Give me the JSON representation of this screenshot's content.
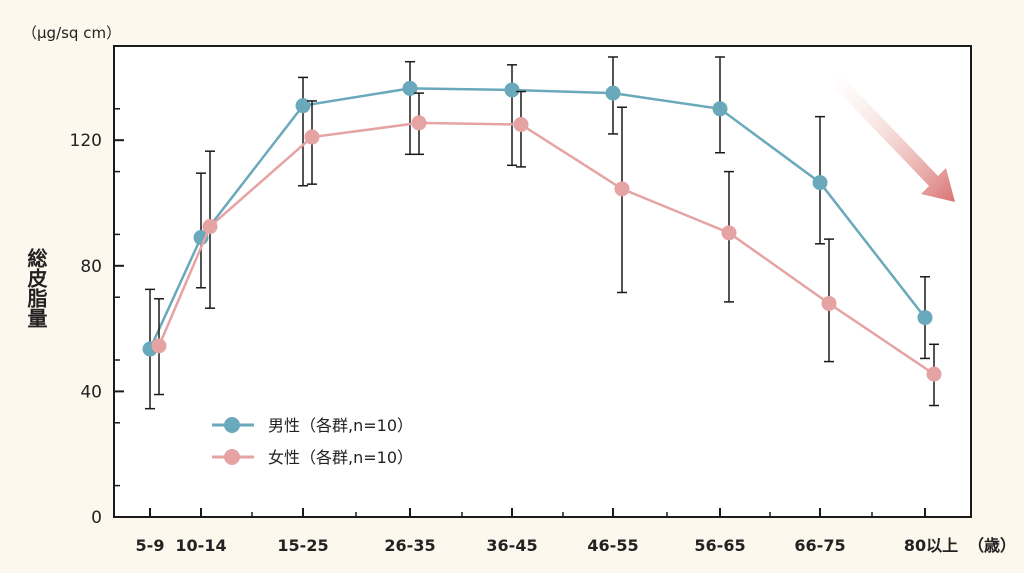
{
  "chart_data": {
    "type": "line",
    "title": "",
    "unit_label": "（μg/sq cm）",
    "ylabel": "総皮脂量",
    "xlabel_suffix": "（歳）",
    "categories": [
      "5-9",
      "10-14",
      "15-25",
      "26-35",
      "36-45",
      "46-55",
      "56-65",
      "66-75",
      "80以上"
    ],
    "ylim": [
      0,
      150
    ],
    "yticks": [
      0,
      40,
      80,
      120
    ],
    "grid": false,
    "legend_position": "lower-left",
    "series": [
      {
        "name": "男性（各群,n=10）",
        "color": "#6aa9bb",
        "values": [
          53.5,
          89,
          131,
          136.5,
          136,
          135,
          130,
          106.5,
          63.5
        ],
        "err_upper": [
          72.5,
          109.5,
          140,
          145,
          144,
          146.5,
          146.5,
          127.5,
          76.5
        ],
        "err_lower": [
          34.5,
          73,
          105.5,
          115.5,
          112,
          122,
          116,
          87,
          50.5
        ]
      },
      {
        "name": "女性（各群,n=10）",
        "color": "#e6a3a3",
        "values": [
          54.5,
          92.5,
          121,
          125.5,
          125,
          104.5,
          90.5,
          68,
          45.5
        ],
        "err_upper": [
          69.5,
          116.5,
          132.5,
          135,
          135.5,
          130.5,
          110,
          88.5,
          55
        ],
        "err_lower": [
          39,
          66.5,
          106,
          115.5,
          111.5,
          71.5,
          68.5,
          49.5,
          35.5
        ]
      }
    ],
    "trend_arrow": "downward"
  }
}
